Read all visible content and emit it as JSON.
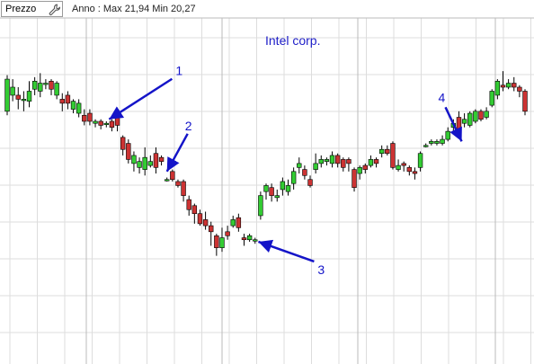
{
  "toolbar": {
    "field_label": "Prezzo",
    "range_info": "Anno : Max 21,94 Min 20,27"
  },
  "icons": {
    "settings": "wrench-icon"
  },
  "colors": {
    "up": "#33cc33",
    "down": "#cc3333",
    "wick": "#000000",
    "grid": "#dddddd",
    "vgrid": "#bbbbbb",
    "annotation": "#1414c8"
  },
  "chart_data": {
    "type": "candlestick",
    "title": "Intel corp.",
    "ylim": [
      20.27,
      21.94
    ],
    "grid": true,
    "candles": [
      {
        "o": 21.52,
        "c": 21.68,
        "h": 21.7,
        "l": 21.5
      },
      {
        "o": 21.6,
        "c": 21.64,
        "h": 21.68,
        "l": 21.57
      },
      {
        "o": 21.6,
        "c": 21.58,
        "h": 21.64,
        "l": 21.53
      },
      {
        "o": 21.58,
        "c": 21.58,
        "h": 21.62,
        "l": 21.52
      },
      {
        "o": 21.57,
        "c": 21.62,
        "h": 21.67,
        "l": 21.54
      },
      {
        "o": 21.63,
        "c": 21.67,
        "h": 21.69,
        "l": 21.6
      },
      {
        "o": 21.62,
        "c": 21.66,
        "h": 21.71,
        "l": 21.59
      },
      {
        "o": 21.66,
        "c": 21.66,
        "h": 21.68,
        "l": 21.63
      },
      {
        "o": 21.67,
        "c": 21.63,
        "h": 21.68,
        "l": 21.6
      },
      {
        "o": 21.6,
        "c": 21.66,
        "h": 21.67,
        "l": 21.58
      },
      {
        "o": 21.58,
        "c": 21.56,
        "h": 21.61,
        "l": 21.52
      },
      {
        "o": 21.6,
        "c": 21.56,
        "h": 21.62,
        "l": 21.53
      },
      {
        "o": 21.53,
        "c": 21.57,
        "h": 21.58,
        "l": 21.51
      },
      {
        "o": 21.51,
        "c": 21.56,
        "h": 21.58,
        "l": 21.49
      },
      {
        "o": 21.5,
        "c": 21.47,
        "h": 21.53,
        "l": 21.45
      },
      {
        "o": 21.51,
        "c": 21.47,
        "h": 21.53,
        "l": 21.45
      },
      {
        "o": 21.46,
        "c": 21.47,
        "h": 21.48,
        "l": 21.44
      },
      {
        "o": 21.47,
        "c": 21.45,
        "h": 21.48,
        "l": 21.43
      },
      {
        "o": 21.46,
        "c": 21.46,
        "h": 21.47,
        "l": 21.44
      },
      {
        "o": 21.47,
        "c": 21.44,
        "h": 21.48,
        "l": 21.42
      },
      {
        "o": 21.49,
        "c": 21.45,
        "h": 21.53,
        "l": 21.42
      },
      {
        "o": 21.39,
        "c": 21.33,
        "h": 21.4,
        "l": 21.3
      },
      {
        "o": 21.36,
        "c": 21.28,
        "h": 21.38,
        "l": 21.26
      },
      {
        "o": 21.26,
        "c": 21.3,
        "h": 21.32,
        "l": 21.22
      },
      {
        "o": 21.24,
        "c": 21.27,
        "h": 21.29,
        "l": 21.21
      },
      {
        "o": 21.23,
        "c": 21.29,
        "h": 21.34,
        "l": 21.2
      },
      {
        "o": 21.25,
        "c": 21.27,
        "h": 21.3,
        "l": 21.24
      },
      {
        "o": 21.31,
        "c": 21.24,
        "h": 21.34,
        "l": 21.21
      },
      {
        "o": 21.29,
        "c": 21.27,
        "h": 21.3,
        "l": 21.25
      },
      {
        "o": 21.18,
        "c": 21.18,
        "h": 21.19,
        "l": 21.17
      },
      {
        "o": 21.22,
        "c": 21.18,
        "h": 21.23,
        "l": 21.17
      },
      {
        "o": 21.17,
        "c": 21.15,
        "h": 21.18,
        "l": 21.14
      },
      {
        "o": 21.17,
        "c": 21.1,
        "h": 21.18,
        "l": 21.07
      },
      {
        "o": 21.08,
        "c": 21.03,
        "h": 21.1,
        "l": 21.0
      },
      {
        "o": 21.05,
        "c": 21.01,
        "h": 21.06,
        "l": 20.96
      },
      {
        "o": 21.01,
        "c": 20.96,
        "h": 21.03,
        "l": 20.95
      },
      {
        "o": 20.98,
        "c": 20.95,
        "h": 21.02,
        "l": 20.93
      },
      {
        "o": 20.95,
        "c": 20.92,
        "h": 20.97,
        "l": 20.85
      },
      {
        "o": 20.9,
        "c": 20.84,
        "h": 20.91,
        "l": 20.8
      },
      {
        "o": 20.84,
        "c": 20.89,
        "h": 20.94,
        "l": 20.82
      },
      {
        "o": 20.92,
        "c": 20.9,
        "h": 20.95,
        "l": 20.88
      },
      {
        "o": 20.95,
        "c": 20.98,
        "h": 21.0,
        "l": 20.94
      },
      {
        "o": 20.99,
        "c": 20.94,
        "h": 21.01,
        "l": 20.92
      },
      {
        "o": 20.89,
        "c": 20.88,
        "h": 20.91,
        "l": 20.85
      },
      {
        "o": 20.88,
        "c": 20.9,
        "h": 20.91,
        "l": 20.87
      },
      {
        "o": 20.88,
        "c": 20.88,
        "h": 20.89,
        "l": 20.86
      },
      {
        "o": 21.0,
        "c": 21.1,
        "h": 21.12,
        "l": 20.98
      },
      {
        "o": 21.12,
        "c": 21.15,
        "h": 21.16,
        "l": 21.08
      },
      {
        "o": 21.14,
        "c": 21.1,
        "h": 21.16,
        "l": 21.07
      },
      {
        "o": 21.09,
        "c": 21.1,
        "h": 21.13,
        "l": 21.07
      },
      {
        "o": 21.13,
        "c": 21.17,
        "h": 21.19,
        "l": 21.1
      },
      {
        "o": 21.12,
        "c": 21.15,
        "h": 21.18,
        "l": 21.1
      },
      {
        "o": 21.16,
        "c": 21.22,
        "h": 21.24,
        "l": 21.13
      },
      {
        "o": 21.24,
        "c": 21.26,
        "h": 21.29,
        "l": 21.21
      },
      {
        "o": 21.23,
        "c": 21.2,
        "h": 21.25,
        "l": 21.18
      },
      {
        "o": 21.18,
        "c": 21.15,
        "h": 21.2,
        "l": 21.14
      },
      {
        "o": 21.23,
        "c": 21.26,
        "h": 21.31,
        "l": 21.21
      },
      {
        "o": 21.26,
        "c": 21.28,
        "h": 21.3,
        "l": 21.24
      },
      {
        "o": 21.27,
        "c": 21.28,
        "h": 21.29,
        "l": 21.25
      },
      {
        "o": 21.26,
        "c": 21.3,
        "h": 21.32,
        "l": 21.24
      },
      {
        "o": 21.3,
        "c": 21.26,
        "h": 21.31,
        "l": 21.24
      },
      {
        "o": 21.28,
        "c": 21.24,
        "h": 21.29,
        "l": 21.22
      },
      {
        "o": 21.28,
        "c": 21.26,
        "h": 21.29,
        "l": 21.22
      },
      {
        "o": 21.23,
        "c": 21.14,
        "h": 21.24,
        "l": 21.12
      },
      {
        "o": 21.21,
        "c": 21.24,
        "h": 21.25,
        "l": 21.18
      },
      {
        "o": 21.25,
        "c": 21.23,
        "h": 21.26,
        "l": 21.21
      },
      {
        "o": 21.25,
        "c": 21.28,
        "h": 21.3,
        "l": 21.24
      },
      {
        "o": 21.28,
        "c": 21.26,
        "h": 21.29,
        "l": 21.24
      },
      {
        "o": 21.31,
        "c": 21.33,
        "h": 21.35,
        "l": 21.29
      },
      {
        "o": 21.33,
        "c": 21.31,
        "h": 21.35,
        "l": 21.3
      },
      {
        "o": 21.36,
        "c": 21.24,
        "h": 21.37,
        "l": 21.23
      },
      {
        "o": 21.23,
        "c": 21.25,
        "h": 21.28,
        "l": 21.22
      },
      {
        "o": 21.26,
        "c": 21.25,
        "h": 21.27,
        "l": 21.22
      },
      {
        "o": 21.24,
        "c": 21.22,
        "h": 21.25,
        "l": 21.2
      },
      {
        "o": 21.22,
        "c": 21.21,
        "h": 21.24,
        "l": 21.18
      },
      {
        "o": 21.24,
        "c": 21.31,
        "h": 21.32,
        "l": 21.22
      },
      {
        "o": 21.35,
        "c": 21.35,
        "h": 21.36,
        "l": 21.34
      },
      {
        "o": 21.36,
        "c": 21.37,
        "h": 21.38,
        "l": 21.35
      },
      {
        "o": 21.36,
        "c": 21.37,
        "h": 21.38,
        "l": 21.35
      },
      {
        "o": 21.36,
        "c": 21.38,
        "h": 21.4,
        "l": 21.35
      },
      {
        "o": 21.38,
        "c": 21.42,
        "h": 21.44,
        "l": 21.37
      },
      {
        "o": 21.44,
        "c": 21.46,
        "h": 21.48,
        "l": 21.42
      },
      {
        "o": 21.49,
        "c": 21.43,
        "h": 21.52,
        "l": 21.41
      },
      {
        "o": 21.46,
        "c": 21.48,
        "h": 21.51,
        "l": 21.44
      },
      {
        "o": 21.45,
        "c": 21.51,
        "h": 21.52,
        "l": 21.44
      },
      {
        "o": 21.47,
        "c": 21.52,
        "h": 21.53,
        "l": 21.46
      },
      {
        "o": 21.52,
        "c": 21.48,
        "h": 21.53,
        "l": 21.47
      },
      {
        "o": 21.49,
        "c": 21.52,
        "h": 21.54,
        "l": 21.48
      },
      {
        "o": 21.55,
        "c": 21.62,
        "h": 21.63,
        "l": 21.54
      },
      {
        "o": 21.6,
        "c": 21.67,
        "h": 21.68,
        "l": 21.58
      },
      {
        "o": 21.65,
        "c": 21.64,
        "h": 21.72,
        "l": 21.62
      },
      {
        "o": 21.64,
        "c": 21.66,
        "h": 21.68,
        "l": 21.63
      },
      {
        "o": 21.66,
        "c": 21.64,
        "h": 21.69,
        "l": 21.62
      },
      {
        "o": 21.64,
        "c": 21.62,
        "h": 21.65,
        "l": 21.59
      },
      {
        "o": 21.62,
        "c": 21.52,
        "h": 21.63,
        "l": 21.5
      }
    ],
    "annotations": [
      {
        "label": "1",
        "x": 18.5,
        "price": 21.48
      },
      {
        "label": "2",
        "x": 29,
        "price": 21.22
      },
      {
        "label": "3",
        "x": 45.6,
        "price": 20.87
      },
      {
        "label": "4",
        "x": 82.5,
        "price": 21.37
      }
    ]
  }
}
